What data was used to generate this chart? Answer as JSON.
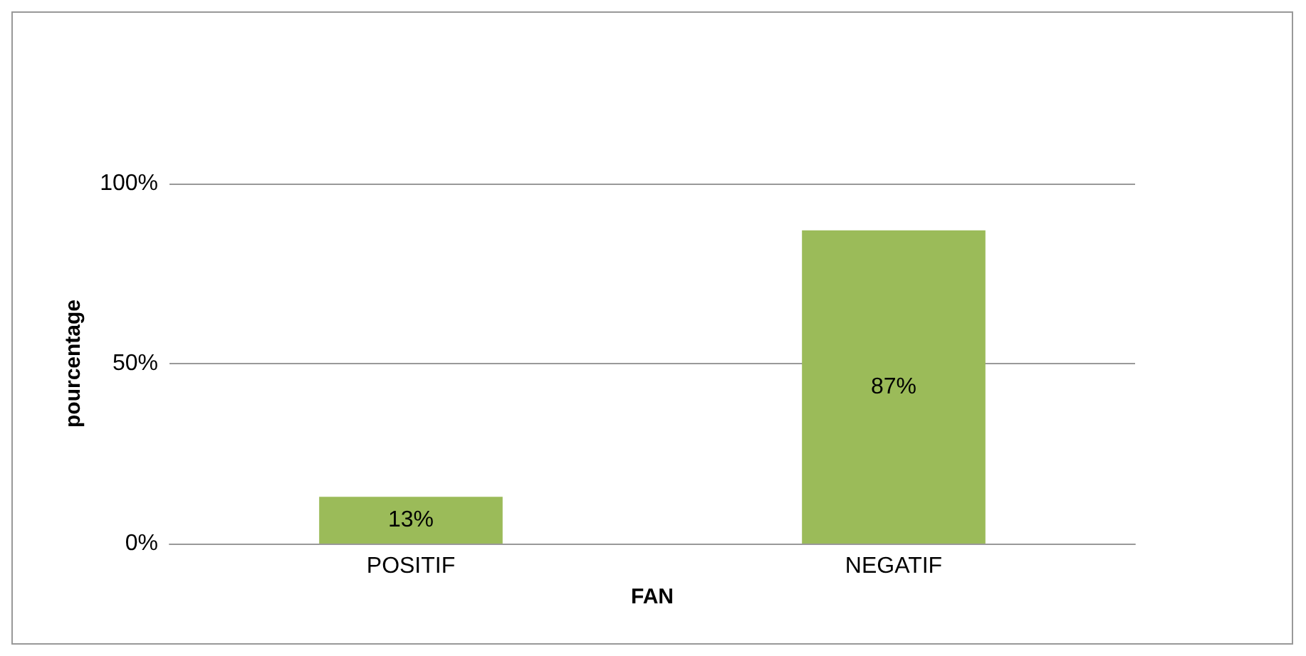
{
  "chart_data": {
    "type": "bar",
    "xlabel": "FAN",
    "ylabel": "pourcentage",
    "categories": [
      "POSITIF",
      "NEGATIF"
    ],
    "values": [
      13,
      87
    ],
    "color": "#9bbb59",
    "value_labels": [
      "13%",
      "87%"
    ],
    "ylim": [
      0,
      100
    ],
    "yticks": [
      {
        "value": 0,
        "label": "0%"
      },
      {
        "value": 50,
        "label": "50%"
      },
      {
        "value": 100,
        "label": "100%"
      }
    ],
    "grid": "y"
  }
}
